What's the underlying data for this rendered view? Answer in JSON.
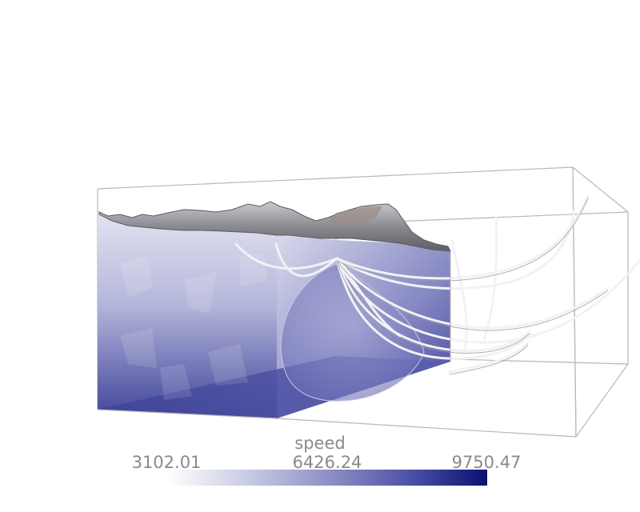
{
  "legend": {
    "title": "speed",
    "min_label": "3102.01",
    "mid_label": "6426.24",
    "max_label": "9750.47",
    "colors": {
      "low": "#ffffff",
      "high": "#0b0f72"
    }
  },
  "scene": {
    "colors": {
      "box_edge": "#b8b8b8",
      "volume_top": "#dedfef",
      "volume_bottom": "#45499c",
      "terrain": "#8d8d93",
      "streamline": "#f0f0f0"
    }
  }
}
